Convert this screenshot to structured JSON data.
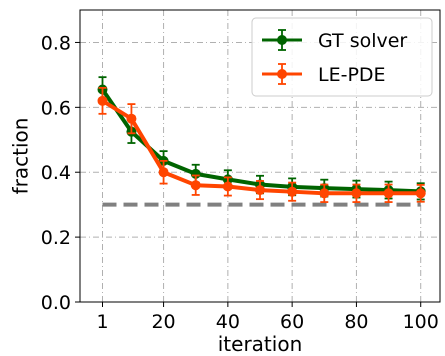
{
  "chart_data": {
    "type": "line",
    "xlabel": "iteration",
    "ylabel": "fraction",
    "xlim": [
      -6,
      106
    ],
    "ylim": [
      0.0,
      0.9
    ],
    "xticks": [
      1,
      20,
      40,
      60,
      80,
      100
    ],
    "xtick_labels": [
      "1",
      "20",
      "40",
      "60",
      "80",
      "100"
    ],
    "yticks": [
      0.0,
      0.2,
      0.4,
      0.6,
      0.8
    ],
    "ytick_labels": [
      "0.0",
      "0.2",
      "0.4",
      "0.6",
      "0.8"
    ],
    "grid": true,
    "legend_position": "top-right",
    "x": [
      1,
      10,
      20,
      30,
      40,
      50,
      60,
      70,
      80,
      90,
      100
    ],
    "series": [
      {
        "name": "GT solver",
        "color": "#006400",
        "values": [
          0.655,
          0.525,
          0.435,
          0.395,
          0.378,
          0.362,
          0.355,
          0.351,
          0.348,
          0.345,
          0.341
        ],
        "errors": [
          0.038,
          0.035,
          0.03,
          0.028,
          0.028,
          0.027,
          0.026,
          0.026,
          0.026,
          0.026,
          0.025
        ]
      },
      {
        "name": "LE-PDE",
        "color": "#ff4500",
        "values": [
          0.62,
          0.565,
          0.4,
          0.36,
          0.356,
          0.345,
          0.34,
          0.335,
          0.335,
          0.335,
          0.335
        ],
        "errors": [
          0.04,
          0.045,
          0.035,
          0.03,
          0.028,
          0.028,
          0.028,
          0.027,
          0.027,
          0.027,
          0.026
        ]
      }
    ],
    "reference_line": {
      "y": 0.3,
      "color": "#808080",
      "style": "dashed"
    }
  }
}
